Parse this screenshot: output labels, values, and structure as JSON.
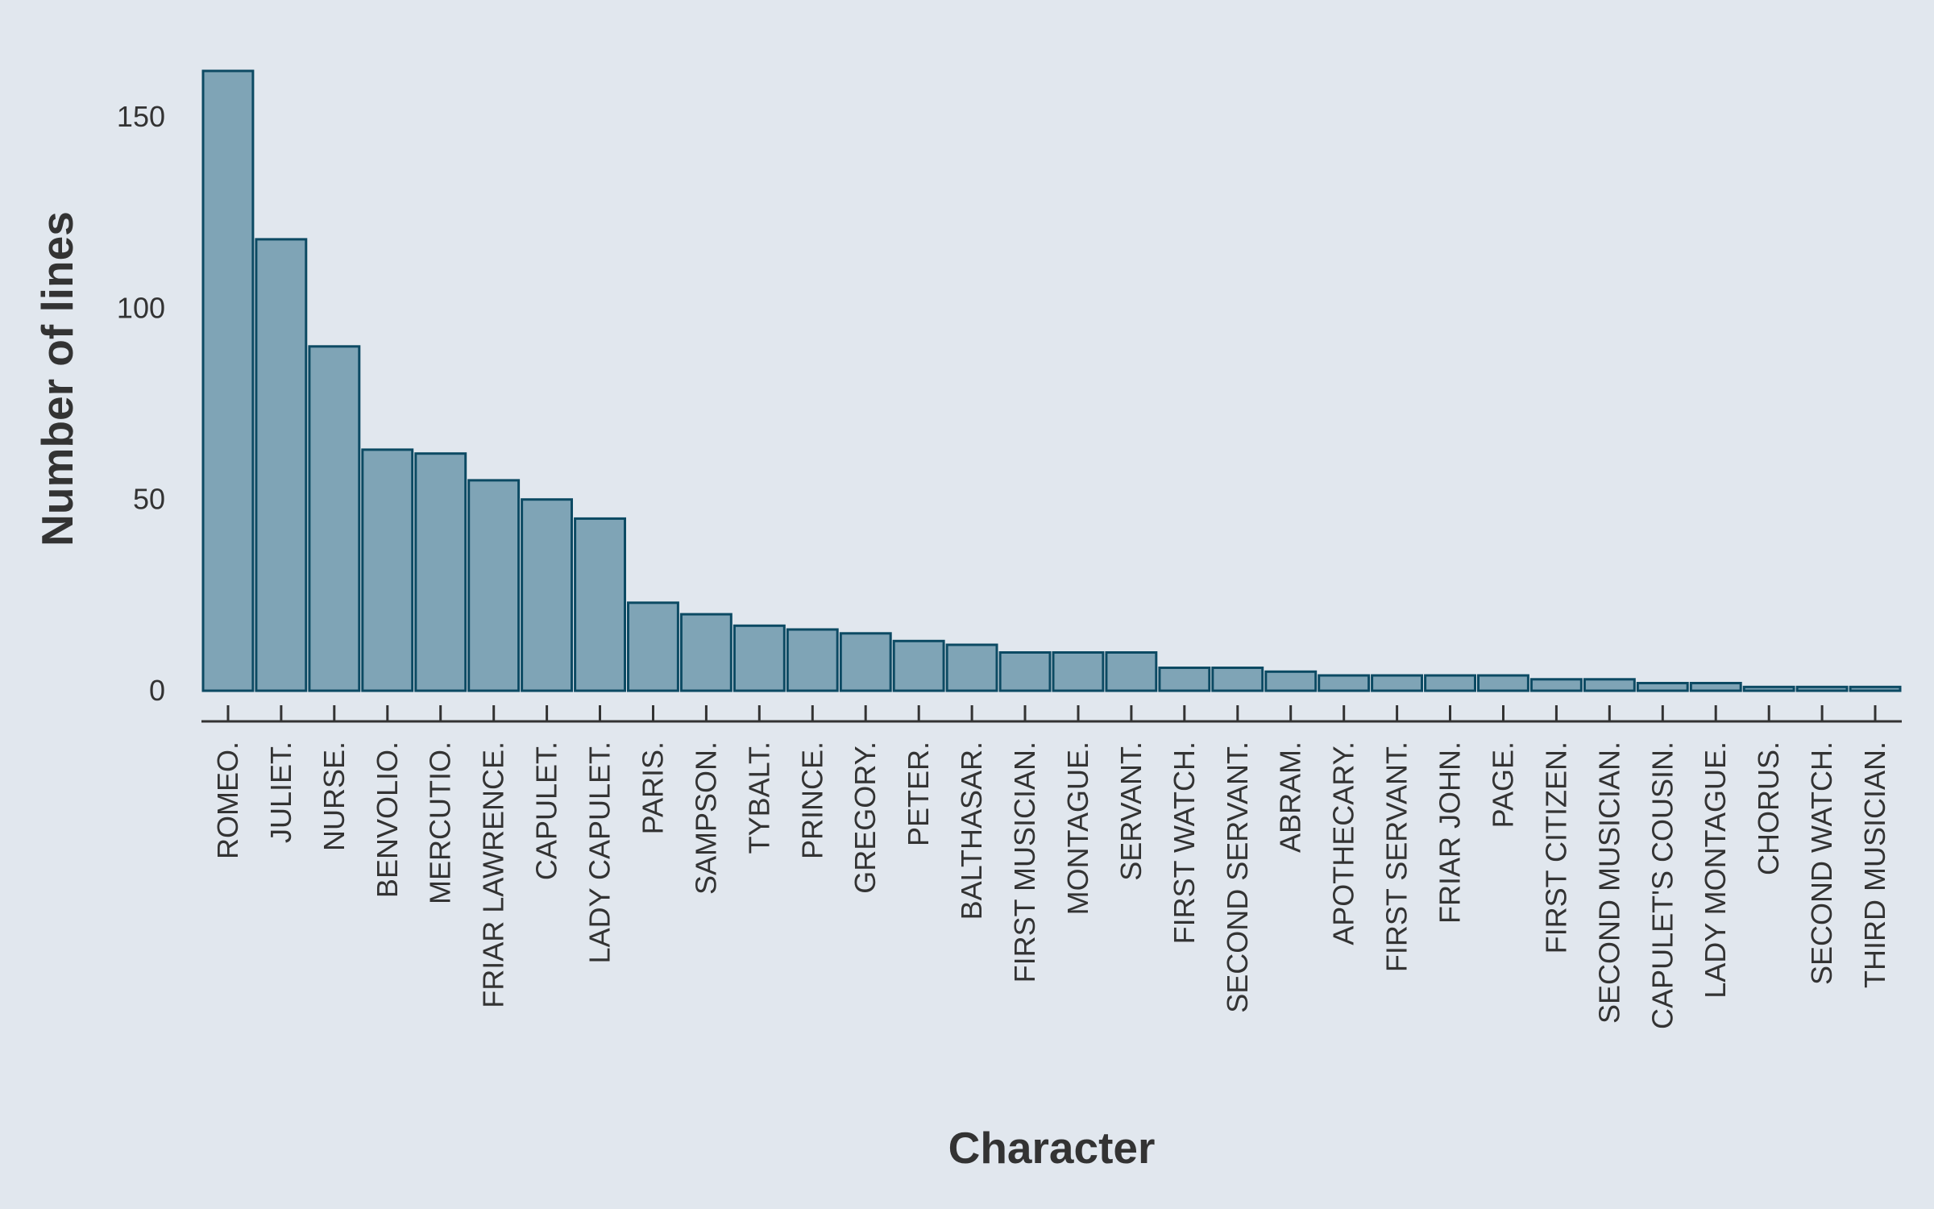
{
  "chart_data": {
    "type": "bar",
    "xlabel": "Character",
    "ylabel": "Number of lines",
    "ylim": [
      0,
      162
    ],
    "yticks": [
      0,
      50,
      100,
      150
    ],
    "grid": false,
    "colors": {
      "bar_fill": "#7fa4b6",
      "bar_stroke": "#0c4a63",
      "axis": "#333333",
      "background": "#e1e7ee"
    },
    "categories": [
      "ROMEO.",
      "JULIET.",
      "NURSE.",
      "BENVOLIO.",
      "MERCUTIO.",
      "FRIAR LAWRENCE.",
      "CAPULET.",
      "LADY CAPULET.",
      "PARIS.",
      "SAMPSON.",
      "TYBALT.",
      "PRINCE.",
      "GREGORY.",
      "PETER.",
      "BALTHASAR.",
      "FIRST MUSICIAN.",
      "MONTAGUE.",
      "SERVANT.",
      "FIRST WATCH.",
      "SECOND SERVANT.",
      "ABRAM.",
      "APOTHECARY.",
      "FIRST SERVANT.",
      "FRIAR JOHN.",
      "PAGE.",
      "FIRST CITIZEN.",
      "SECOND MUSICIAN.",
      "CAPULET'S COUSIN.",
      "LADY MONTAGUE.",
      "CHORUS.",
      "SECOND WATCH.",
      "THIRD MUSICIAN."
    ],
    "values": [
      162,
      118,
      90,
      63,
      62,
      55,
      50,
      45,
      23,
      20,
      17,
      16,
      15,
      13,
      12,
      10,
      10,
      10,
      6,
      6,
      5,
      4,
      4,
      4,
      4,
      3,
      3,
      2,
      2,
      1,
      1,
      1
    ]
  }
}
